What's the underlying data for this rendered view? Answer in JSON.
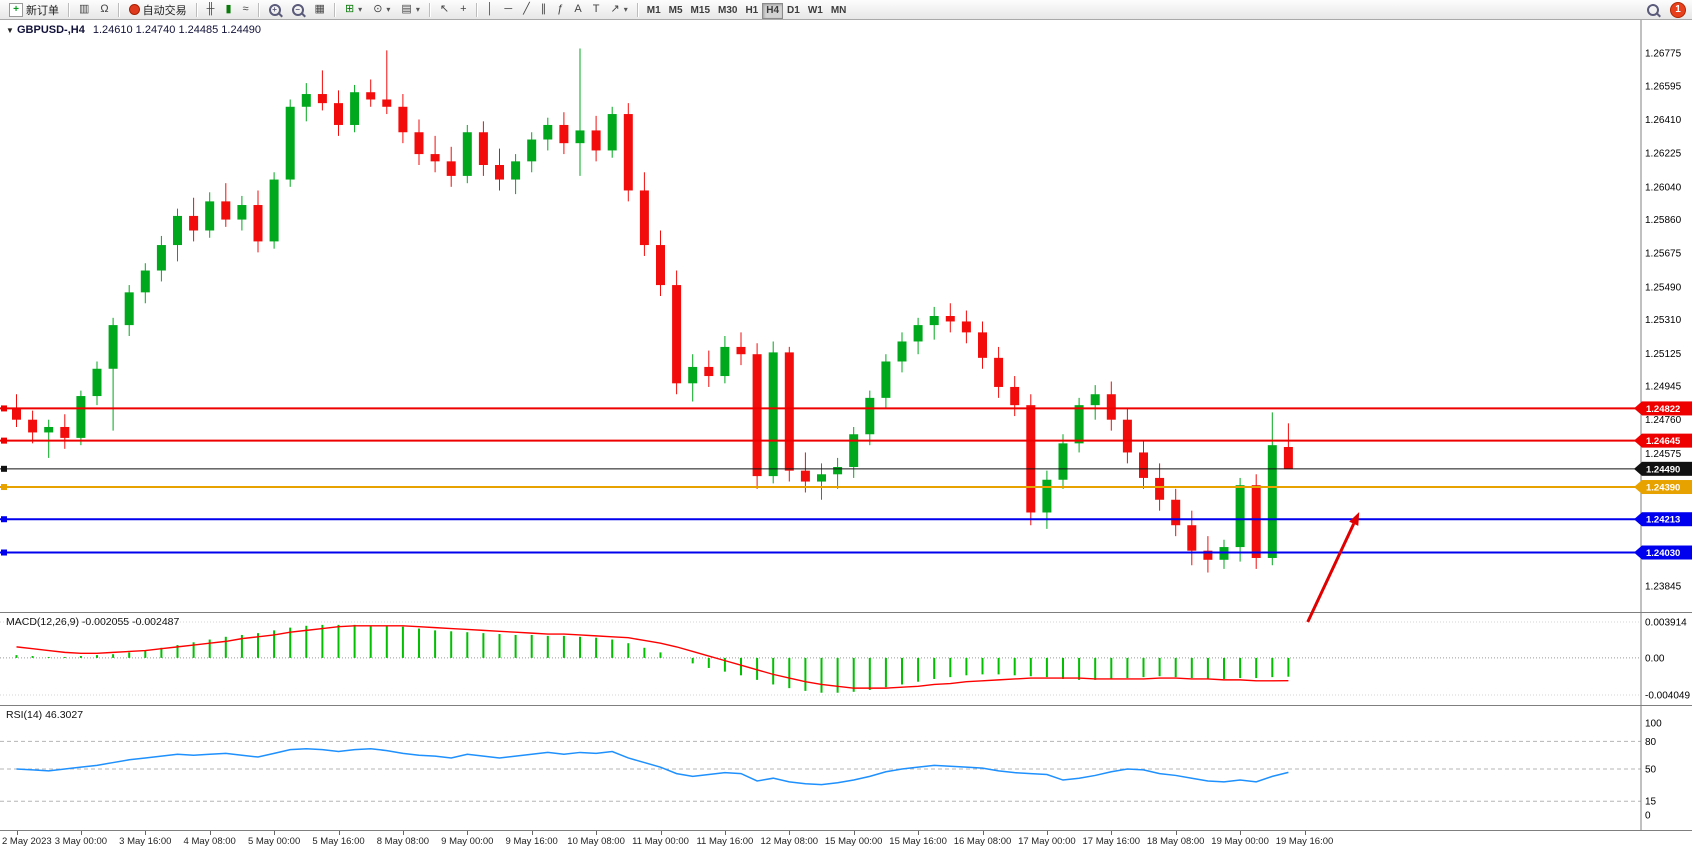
{
  "header": {
    "symbol_period": "GBPUSD-,H4",
    "quote": "1.24610 1.24740 1.24485 1.24490"
  },
  "toolbar": {
    "new_order_label": "新订单",
    "autotrading_label": "自动交易",
    "timeframes": [
      "M1",
      "M5",
      "M15",
      "M30",
      "H1",
      "H4",
      "D1",
      "W1",
      "MN"
    ],
    "active_timeframe": "H4",
    "notification_count": "1"
  },
  "icons": {
    "new_order": "+",
    "chart_window": "▥",
    "market_watch": "Ω",
    "autotrading_play": "▶",
    "bar_chart": "╫",
    "candle_chart": "▮",
    "line_chart": "≈",
    "plus": "+",
    "minus": "−",
    "tile_windows": "▦",
    "new_chart": "⊞",
    "period_clock": "⊙",
    "template": "▤",
    "caret": "▾",
    "cursor": "↖",
    "crosshair": "+",
    "vertical_line": "│",
    "horizontal_line": "─",
    "trendline": "╱",
    "channel": "∥",
    "fibonacci": "ƒ",
    "text": "A",
    "text_label": "T",
    "arrow_tool": "↗",
    "dropdown_symbol": "▼"
  },
  "colors": {
    "up": "#00a81d",
    "down": "#f20c0c",
    "macd_hist": "#00c000",
    "macd_signal": "#ff0000",
    "rsi": "#1e90ff",
    "arrow": "#e00000"
  },
  "chart_data": [
    {
      "type": "candlestick",
      "symbol": "GBPUSD-",
      "timeframe": "H4",
      "ohlc_current": {
        "open": 1.2461,
        "high": 1.2474,
        "low": 1.24485,
        "close": 1.2449
      },
      "ylim": [
        1.2378,
        1.2688
      ],
      "price_labels": [
        "1.26775",
        "1.26595",
        "1.26410",
        "1.26225",
        "1.26040",
        "1.25860",
        "1.25675",
        "1.25490",
        "1.25310",
        "1.25125",
        "1.24945",
        "1.24760",
        "1.24575",
        "1.24390",
        "1.24205",
        "1.24020",
        "1.23845"
      ],
      "hlines": [
        {
          "price": 1.24822,
          "label": "1.24822",
          "color": "#ee0000",
          "width": 2
        },
        {
          "price": 1.24645,
          "label": "1.24645",
          "color": "#ee0000",
          "width": 2
        },
        {
          "price": 1.2449,
          "label": "1.24490",
          "color": "#111111",
          "width": 1
        },
        {
          "price": 1.2439,
          "label": "1.24390",
          "color": "#e8a200",
          "width": 2
        },
        {
          "price": 1.24213,
          "label": "1.24213",
          "color": "#0000ee",
          "width": 2
        },
        {
          "price": 1.2403,
          "label": "1.24030",
          "color": "#0000ee",
          "width": 2
        }
      ],
      "arrow": {
        "from": {
          "bar": 80.2,
          "price": 1.23648
        },
        "to": {
          "bar": 83.4,
          "price": 1.24253
        }
      },
      "x_labels": [
        "2 May 2023",
        "3 May 00:00",
        "3 May 16:00",
        "4 May 08:00",
        "5 May 00:00",
        "5 May 16:00",
        "8 May 08:00",
        "9 May 00:00",
        "9 May 16:00",
        "10 May 08:00",
        "11 May 00:00",
        "11 May 16:00",
        "12 May 08:00",
        "15 May 00:00",
        "15 May 16:00",
        "16 May 08:00",
        "17 May 00:00",
        "17 May 16:00",
        "18 May 08:00",
        "19 May 00:00",
        "19 May 16:00"
      ],
      "bars_per_label": 4,
      "candles": [
        [
          1.2482,
          1.249,
          1.2472,
          1.2476
        ],
        [
          1.2476,
          1.2481,
          1.2463,
          1.2469
        ],
        [
          1.2469,
          1.2476,
          1.2455,
          1.2472
        ],
        [
          1.2472,
          1.2479,
          1.246,
          1.2466
        ],
        [
          1.2466,
          1.2492,
          1.2462,
          1.2489
        ],
        [
          1.2489,
          1.2508,
          1.2484,
          1.2504
        ],
        [
          1.2504,
          1.2532,
          1.247,
          1.2528
        ],
        [
          1.2528,
          1.255,
          1.2522,
          1.2546
        ],
        [
          1.2546,
          1.2562,
          1.254,
          1.2558
        ],
        [
          1.2558,
          1.2577,
          1.2552,
          1.2572
        ],
        [
          1.2572,
          1.2592,
          1.2563,
          1.2588
        ],
        [
          1.2588,
          1.2598,
          1.2574,
          1.258
        ],
        [
          1.258,
          1.2601,
          1.2576,
          1.2596
        ],
        [
          1.2596,
          1.2606,
          1.2582,
          1.2586
        ],
        [
          1.2586,
          1.2599,
          1.258,
          1.2594
        ],
        [
          1.2594,
          1.2602,
          1.2568,
          1.2574
        ],
        [
          1.2574,
          1.2612,
          1.257,
          1.2608
        ],
        [
          1.2608,
          1.2652,
          1.2604,
          1.2648
        ],
        [
          1.2648,
          1.2661,
          1.264,
          1.2655
        ],
        [
          1.2655,
          1.2668,
          1.2646,
          1.265
        ],
        [
          1.265,
          1.2657,
          1.2632,
          1.2638
        ],
        [
          1.2638,
          1.266,
          1.2634,
          1.2656
        ],
        [
          1.2656,
          1.2663,
          1.2648,
          1.2652
        ],
        [
          1.2652,
          1.2679,
          1.2644,
          1.2648
        ],
        [
          1.2648,
          1.2655,
          1.2628,
          1.2634
        ],
        [
          1.2634,
          1.2641,
          1.2616,
          1.2622
        ],
        [
          1.2622,
          1.2632,
          1.2612,
          1.2618
        ],
        [
          1.2618,
          1.2626,
          1.2604,
          1.261
        ],
        [
          1.261,
          1.2638,
          1.2606,
          1.2634
        ],
        [
          1.2634,
          1.264,
          1.261,
          1.2616
        ],
        [
          1.2616,
          1.2625,
          1.2602,
          1.2608
        ],
        [
          1.2608,
          1.2622,
          1.26,
          1.2618
        ],
        [
          1.2618,
          1.2634,
          1.2612,
          1.263
        ],
        [
          1.263,
          1.2642,
          1.2624,
          1.2638
        ],
        [
          1.2638,
          1.2645,
          1.2622,
          1.2628
        ],
        [
          1.2628,
          1.268,
          1.261,
          1.2635
        ],
        [
          1.2635,
          1.2643,
          1.2618,
          1.2624
        ],
        [
          1.2624,
          1.2648,
          1.262,
          1.2644
        ],
        [
          1.2644,
          1.265,
          1.2596,
          1.2602
        ],
        [
          1.2602,
          1.2612,
          1.2566,
          1.2572
        ],
        [
          1.2572,
          1.258,
          1.2544,
          1.255
        ],
        [
          1.255,
          1.2558,
          1.249,
          1.2496
        ],
        [
          1.2496,
          1.2512,
          1.2486,
          1.2505
        ],
        [
          1.2505,
          1.2514,
          1.2494,
          1.25
        ],
        [
          1.25,
          1.2522,
          1.2496,
          1.2516
        ],
        [
          1.2516,
          1.2524,
          1.2506,
          1.2512
        ],
        [
          1.2512,
          1.2518,
          1.2438,
          1.2445
        ],
        [
          1.2445,
          1.2519,
          1.2441,
          1.2513
        ],
        [
          1.2513,
          1.2516,
          1.2442,
          1.2448
        ],
        [
          1.2448,
          1.2458,
          1.2436,
          1.2442
        ],
        [
          1.2442,
          1.2452,
          1.2432,
          1.2446
        ],
        [
          1.2446,
          1.2455,
          1.2438,
          1.245
        ],
        [
          1.245,
          1.2472,
          1.2444,
          1.2468
        ],
        [
          1.2468,
          1.2492,
          1.2462,
          1.2488
        ],
        [
          1.2488,
          1.2512,
          1.2482,
          1.2508
        ],
        [
          1.2508,
          1.2524,
          1.2502,
          1.2519
        ],
        [
          1.2519,
          1.2532,
          1.2512,
          1.2528
        ],
        [
          1.2528,
          1.2538,
          1.252,
          1.2533
        ],
        [
          1.2533,
          1.254,
          1.2524,
          1.253
        ],
        [
          1.253,
          1.2536,
          1.2518,
          1.2524
        ],
        [
          1.2524,
          1.253,
          1.2504,
          1.251
        ],
        [
          1.251,
          1.2516,
          1.2488,
          1.2494
        ],
        [
          1.2494,
          1.25,
          1.2478,
          1.2484
        ],
        [
          1.2484,
          1.249,
          1.2418,
          1.2425
        ],
        [
          1.2425,
          1.2448,
          1.2416,
          1.2443
        ],
        [
          1.2443,
          1.2468,
          1.2438,
          1.2463
        ],
        [
          1.2463,
          1.2488,
          1.2458,
          1.2484
        ],
        [
          1.2484,
          1.2495,
          1.2476,
          1.249
        ],
        [
          1.249,
          1.2497,
          1.247,
          1.2476
        ],
        [
          1.2476,
          1.2482,
          1.2452,
          1.2458
        ],
        [
          1.2458,
          1.2464,
          1.2438,
          1.2444
        ],
        [
          1.2444,
          1.2452,
          1.2426,
          1.2432
        ],
        [
          1.2432,
          1.2438,
          1.2412,
          1.2418
        ],
        [
          1.2418,
          1.2426,
          1.2396,
          1.2404
        ],
        [
          1.2404,
          1.2412,
          1.2392,
          1.2399
        ],
        [
          1.2399,
          1.241,
          1.2394,
          1.2406
        ],
        [
          1.2406,
          1.2444,
          1.2398,
          1.244
        ],
        [
          1.244,
          1.2446,
          1.2394,
          1.24
        ],
        [
          1.24,
          1.248,
          1.2396,
          1.2462
        ],
        [
          1.2461,
          1.2474,
          1.2449,
          1.2449
        ]
      ]
    },
    {
      "type": "macd",
      "label": "MACD(12,26,9) -0.002055 -0.002487",
      "ylim": [
        -0.004049,
        0.003914
      ],
      "scale_labels": [
        "0.003914",
        "0.00",
        "-0.004049"
      ],
      "histogram": [
        0.0003,
        0.0002,
        0.0001,
        0.0001,
        0.0002,
        0.0003,
        0.0004,
        0.0006,
        0.0008,
        0.0011,
        0.0014,
        0.0017,
        0.002,
        0.0023,
        0.0025,
        0.0027,
        0.003,
        0.0033,
        0.0035,
        0.0036,
        0.0036,
        0.0036,
        0.0035,
        0.0035,
        0.0034,
        0.0032,
        0.003,
        0.0029,
        0.0028,
        0.0027,
        0.0026,
        0.0025,
        0.0025,
        0.0024,
        0.0024,
        0.0023,
        0.0022,
        0.002,
        0.0016,
        0.0011,
        0.0006,
        0.0,
        -0.0006,
        -0.0011,
        -0.0015,
        -0.0019,
        -0.0024,
        -0.0029,
        -0.0033,
        -0.0036,
        -0.0038,
        -0.0038,
        -0.0037,
        -0.0035,
        -0.0032,
        -0.0029,
        -0.0026,
        -0.0023,
        -0.0021,
        -0.0019,
        -0.0018,
        -0.0018,
        -0.0019,
        -0.002,
        -0.0021,
        -0.0023,
        -0.0024,
        -0.0024,
        -0.0023,
        -0.0022,
        -0.0021,
        -0.002,
        -0.0021,
        -0.0022,
        -0.0023,
        -0.0023,
        -0.0022,
        -0.0022,
        -0.0021,
        -0.002055
      ],
      "signal": [
        0.0012,
        0.001,
        0.0008,
        0.0006,
        0.0005,
        0.0005,
        0.0006,
        0.0007,
        0.0008,
        0.001,
        0.0012,
        0.0014,
        0.0016,
        0.0018,
        0.0021,
        0.0023,
        0.0025,
        0.0028,
        0.003,
        0.0032,
        0.0034,
        0.0035,
        0.0035,
        0.0035,
        0.0035,
        0.0034,
        0.0033,
        0.0032,
        0.0031,
        0.003,
        0.0029,
        0.0028,
        0.0027,
        0.0026,
        0.0026,
        0.0025,
        0.0024,
        0.0023,
        0.0022,
        0.0019,
        0.0016,
        0.0012,
        0.0007,
        0.0002,
        -0.0003,
        -0.0008,
        -0.0013,
        -0.0018,
        -0.0022,
        -0.0026,
        -0.0029,
        -0.0031,
        -0.0033,
        -0.0033,
        -0.0033,
        -0.0032,
        -0.0031,
        -0.0029,
        -0.0028,
        -0.0026,
        -0.0025,
        -0.0024,
        -0.0023,
        -0.0022,
        -0.0022,
        -0.0022,
        -0.0022,
        -0.0023,
        -0.0023,
        -0.0023,
        -0.0023,
        -0.0022,
        -0.0022,
        -0.0023,
        -0.0023,
        -0.0024,
        -0.0024,
        -0.0025,
        -0.0025,
        -0.002487
      ]
    },
    {
      "type": "rsi",
      "label": "RSI(14) 46.3027",
      "ylim": [
        0,
        100
      ],
      "levels": [
        80,
        50,
        15
      ],
      "scale_labels": [
        "100",
        "80",
        "50",
        "15",
        "0"
      ],
      "values": [
        50,
        49,
        48,
        50,
        52,
        54,
        57,
        60,
        62,
        64,
        66,
        65,
        66,
        67,
        65,
        63,
        67,
        71,
        72,
        71,
        69,
        71,
        72,
        70,
        67,
        65,
        64,
        62,
        66,
        64,
        62,
        64,
        66,
        68,
        66,
        68,
        67,
        69,
        62,
        57,
        52,
        45,
        42,
        44,
        46,
        45,
        37,
        40,
        36,
        34,
        33,
        35,
        38,
        42,
        47,
        50,
        52,
        54,
        53,
        52,
        51,
        48,
        46,
        45,
        44,
        38,
        40,
        43,
        47,
        50,
        49,
        45,
        43,
        40,
        37,
        36,
        38,
        36,
        42,
        46.3
      ]
    }
  ]
}
